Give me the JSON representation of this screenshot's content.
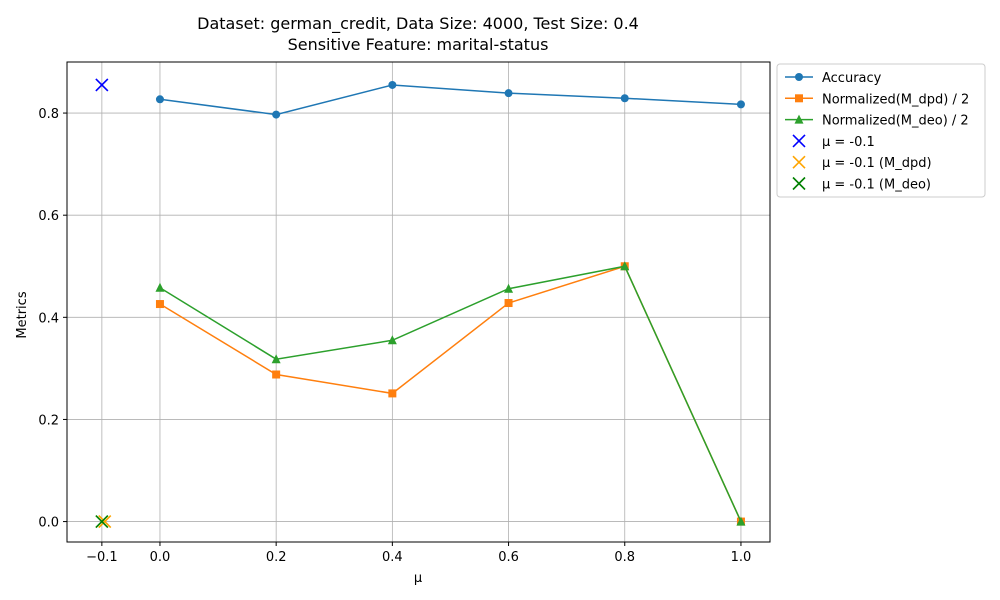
{
  "chart_data": {
    "type": "line",
    "title_lines": [
      "Dataset: german_credit, Data Size: 4000, Test Size: 0.4",
      "Sensitive Feature: marital-status"
    ],
    "xlabel": "μ",
    "ylabel": "Metrics",
    "xlim": [
      -0.16,
      1.05
    ],
    "ylim": [
      -0.04,
      0.9
    ],
    "xticks": [
      -0.1,
      0.0,
      0.2,
      0.4,
      0.6,
      0.8,
      1.0
    ],
    "xtick_labels": [
      "−0.1",
      "0.0",
      "0.2",
      "0.4",
      "0.6",
      "0.8",
      "1.0"
    ],
    "yticks": [
      0.0,
      0.2,
      0.4,
      0.6,
      0.8
    ],
    "ytick_labels": [
      "0.0",
      "0.2",
      "0.4",
      "0.6",
      "0.8"
    ],
    "grid": true,
    "legend_position": "outside-upper-right",
    "x": [
      0.0,
      0.2,
      0.4,
      0.6,
      0.8,
      1.0
    ],
    "series": [
      {
        "name": "Accuracy",
        "values": [
          0.827,
          0.797,
          0.855,
          0.839,
          0.829,
          0.817
        ],
        "color": "#1f77b4",
        "marker": "circle"
      },
      {
        "name": "Normalized(M_dpd) / 2",
        "values": [
          0.426,
          0.288,
          0.251,
          0.428,
          0.5,
          0.0
        ],
        "color": "#ff7f0e",
        "marker": "square"
      },
      {
        "name": "Normalized(M_deo) / 2",
        "values": [
          0.458,
          0.318,
          0.355,
          0.456,
          0.5,
          0.0
        ],
        "color": "#2ca02c",
        "marker": "triangle"
      }
    ],
    "special_points": [
      {
        "name": "μ = -0.1",
        "x": -0.1,
        "y": 0.855,
        "color": "#0000ff"
      },
      {
        "name": "μ = -0.1 (M_dpd)",
        "x": -0.095,
        "y": 0.0,
        "color": "#ffa500"
      },
      {
        "name": "μ = -0.1 (M_deo)",
        "x": -0.1,
        "y": 0.0,
        "color": "#008000"
      }
    ]
  }
}
